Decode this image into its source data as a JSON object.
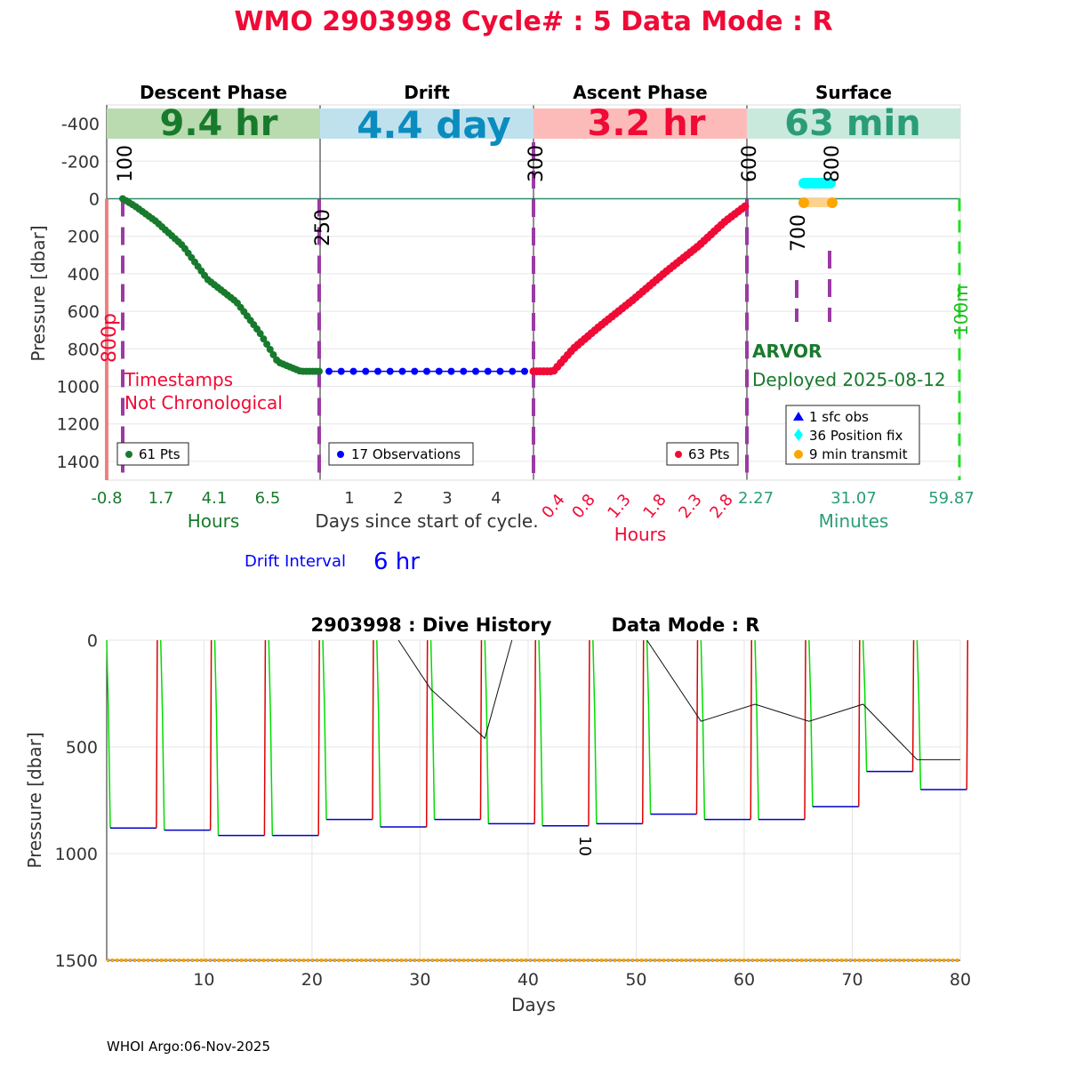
{
  "title": "WMO 2903998   Cycle# : 5   Data Mode : R",
  "colors": {
    "title": "#f00a36",
    "descent": "#187a2c",
    "descent_band": "#b9dbaf",
    "drift": "#0000ff",
    "drift_band_text": "#0b8cbf",
    "drift_band": "#bfe1ee",
    "ascent": "#f00a36",
    "ascent_band": "#fcbbb9",
    "surface": "#2a9d78",
    "surface_band": "#c8e9db",
    "marker": "#9b3aa3",
    "history_descent": "#00dd00",
    "history_ascent": "#dd0000",
    "history_drift": "#0000cc",
    "history_bottom": "#ffa500",
    "surface_line": "#2a8f6a"
  },
  "top": {
    "ylabel": "Pressure [dbar]",
    "yticks": [
      -400,
      -200,
      0,
      200,
      400,
      600,
      800,
      1000,
      1200,
      1400
    ],
    "ylim": [
      -500,
      1500
    ],
    "panels": {
      "descent": {
        "header": "Descent Phase",
        "band": "9.4 hr",
        "xticks": [
          "-0.8",
          "1.7",
          "4.1",
          "6.5"
        ],
        "xlabel": "Hours",
        "legend": "61 Pts",
        "note1": "Timestamps",
        "note2": "Not Chronological",
        "label_800p": "800p",
        "label_100": "100",
        "label_250": "250"
      },
      "drift": {
        "header": "Drift",
        "band": "4.4 day",
        "xticks": [
          "1",
          "2",
          "3",
          "4"
        ],
        "xlabel": "Days since start of cycle.",
        "legend": "17 Observations",
        "interval_label": "Drift Interval",
        "interval_value": "6 hr"
      },
      "ascent": {
        "header": "Ascent Phase",
        "band": "3.2 hr",
        "xticks": [
          "0.4",
          "0.8",
          "1.3",
          "1.8",
          "2.3",
          "2.8"
        ],
        "xlabel": "Hours",
        "legend": "63 Pts",
        "label_300": "300",
        "label_600": "600"
      },
      "surface": {
        "header": "Surface",
        "band": "63 min",
        "xticks": [
          "2.27",
          "31.07",
          "59.87"
        ],
        "xlabel": "Minutes",
        "float_type": "ARVOR",
        "deployed": "Deployed 2025-08-12",
        "legend": [
          "1 sfc obs",
          "36 Position fix",
          "9 min transmit"
        ],
        "label_700": "700",
        "label_800": "800",
        "label_100m": "100m"
      }
    }
  },
  "chart_data": [
    {
      "type": "scatter",
      "title": "Descent Phase",
      "xlabel": "Hours",
      "ylabel": "Pressure [dbar]",
      "xlim": [
        -0.8,
        9.4
      ],
      "ylim": [
        -500,
        1500
      ],
      "x": [
        -0.1,
        0.5,
        1.5,
        2.8,
        4.0,
        5.4,
        6.5,
        7.4,
        8.5,
        9.4
      ],
      "y": [
        0,
        40,
        120,
        250,
        430,
        550,
        710,
        870,
        920,
        920
      ]
    },
    {
      "type": "scatter",
      "title": "Drift",
      "xlabel": "Days since start of cycle.",
      "ylim": [
        -500,
        1500
      ],
      "x": [
        0.4,
        0.67,
        0.93,
        1.2,
        1.47,
        1.73,
        2.0,
        2.27,
        2.53,
        2.8,
        3.07,
        3.33,
        3.6,
        3.87,
        4.13,
        4.4,
        4.67
      ],
      "y": [
        920,
        920,
        920,
        920,
        920,
        920,
        920,
        920,
        920,
        920,
        920,
        920,
        920,
        920,
        920,
        920,
        920
      ]
    },
    {
      "type": "scatter",
      "title": "Ascent Phase",
      "xlabel": "Hours",
      "ylim": [
        -500,
        1500
      ],
      "x": [
        0.0,
        0.3,
        0.6,
        1.0,
        1.5,
        2.0,
        2.5,
        2.9,
        3.2
      ],
      "y": [
        920,
        920,
        800,
        680,
        540,
        390,
        250,
        120,
        40
      ]
    },
    {
      "type": "scatter",
      "title": "Surface",
      "xlabel": "Minutes",
      "xlim": [
        2.27,
        59.87
      ],
      "series": [
        {
          "name": "36 Position fix",
          "x": [
            15,
            25
          ],
          "y": [
            -50,
            -50
          ]
        },
        {
          "name": "9 min transmit",
          "x": [
            15,
            25
          ],
          "y": [
            50,
            50
          ]
        }
      ]
    },
    {
      "type": "line",
      "title": "2903998 : Dive History",
      "title_right": "Data Mode : R",
      "xlabel": "Days",
      "ylabel": "Pressure [dbar]",
      "xlim": [
        1,
        80
      ],
      "ylim": [
        0,
        1500
      ],
      "xticks": [
        10,
        20,
        30,
        40,
        50,
        60,
        70,
        80
      ],
      "yticks": [
        0,
        500,
        1000,
        1500
      ],
      "annotation": "10",
      "cycle_starts": [
        1,
        6,
        11,
        16,
        21,
        26,
        31,
        36,
        41,
        46,
        51,
        56,
        61,
        66,
        71,
        76
      ],
      "drift_depths": [
        880,
        890,
        915,
        915,
        840,
        875,
        840,
        860,
        870,
        860,
        815,
        840,
        840,
        780,
        615,
        700
      ],
      "surface_track": [
        {
          "x": 28,
          "y": 0
        },
        {
          "x": 31,
          "y": 230
        },
        {
          "x": 36,
          "y": 460
        },
        {
          "x": 38.5,
          "y": 0
        },
        {
          "x": 51,
          "y": 0
        },
        {
          "x": 56,
          "y": 380
        },
        {
          "x": 61,
          "y": 300
        },
        {
          "x": 66,
          "y": 380
        },
        {
          "x": 71,
          "y": 300
        },
        {
          "x": 76,
          "y": 560
        },
        {
          "x": 80,
          "y": 560
        }
      ]
    }
  ],
  "footer": "WHOI Argo:06-Nov-2025"
}
